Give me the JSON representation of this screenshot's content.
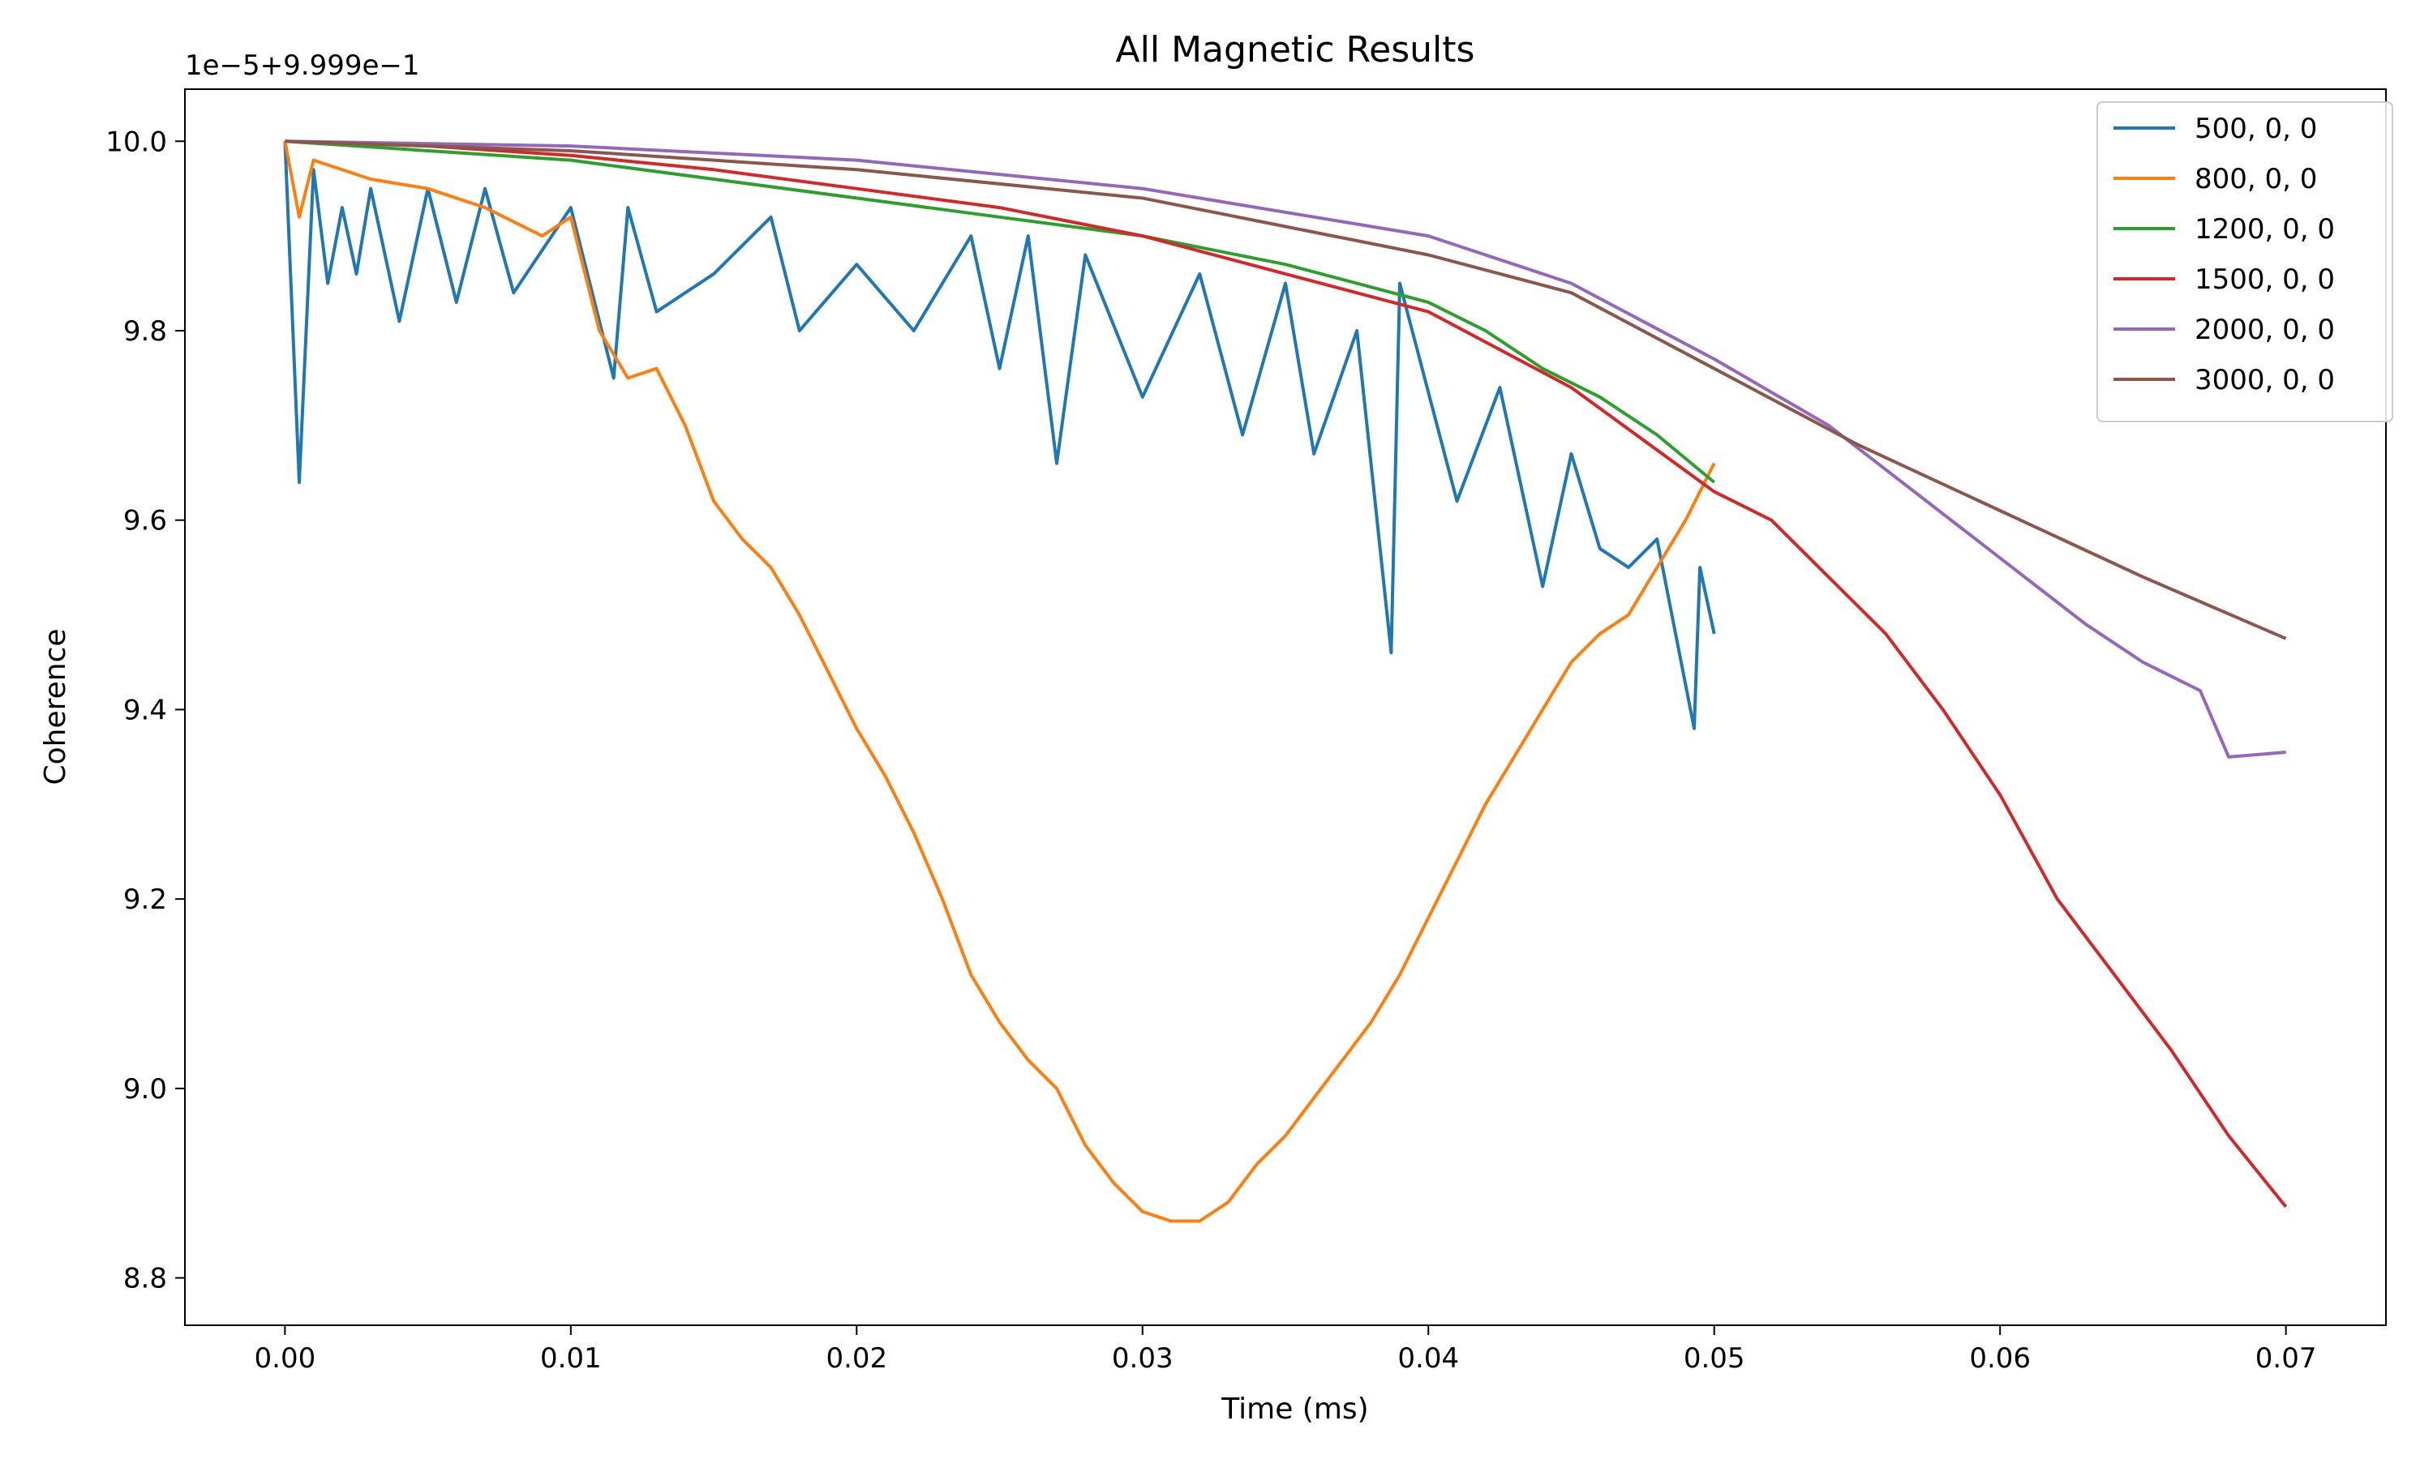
{
  "chart_data": {
    "type": "line",
    "title": "All Magnetic Results",
    "xlabel": "Time (ms)",
    "ylabel": "Coherence",
    "y_offset_text": "1e−5+9.999e−1",
    "xlim": [
      -0.0035,
      0.0735
    ],
    "ylim": [
      8.75,
      10.055
    ],
    "xticks": [
      0.0,
      0.01,
      0.02,
      0.03,
      0.04,
      0.05,
      0.06,
      0.07
    ],
    "xtick_labels": [
      "0.00",
      "0.01",
      "0.02",
      "0.03",
      "0.04",
      "0.05",
      "0.06",
      "0.07"
    ],
    "yticks": [
      8.8,
      9.0,
      9.2,
      9.4,
      9.6,
      9.8,
      10.0
    ],
    "ytick_labels": [
      "8.8",
      "9.0",
      "9.2",
      "9.4",
      "9.6",
      "9.8",
      "10.0"
    ],
    "grid": false,
    "legend_position": "top-right",
    "series": [
      {
        "name": "500, 0, 0",
        "color": "#1f77b4",
        "x": [
          0.0,
          0.0005,
          0.001,
          0.0015,
          0.002,
          0.0025,
          0.003,
          0.004,
          0.005,
          0.006,
          0.007,
          0.008,
          0.01,
          0.0115,
          0.012,
          0.013,
          0.015,
          0.017,
          0.018,
          0.02,
          0.022,
          0.024,
          0.025,
          0.026,
          0.027,
          0.028,
          0.03,
          0.032,
          0.0335,
          0.035,
          0.036,
          0.0375,
          0.0387,
          0.039,
          0.041,
          0.0425,
          0.044,
          0.045,
          0.046,
          0.047,
          0.048,
          0.0493,
          0.0495,
          0.05
        ],
        "y": [
          10.0,
          9.64,
          9.97,
          9.85,
          9.93,
          9.86,
          9.95,
          9.81,
          9.95,
          9.83,
          9.95,
          9.84,
          9.93,
          9.75,
          9.93,
          9.82,
          9.86,
          9.92,
          9.8,
          9.87,
          9.8,
          9.9,
          9.76,
          9.9,
          9.66,
          9.88,
          9.73,
          9.86,
          9.69,
          9.85,
          9.67,
          9.8,
          9.46,
          9.85,
          9.62,
          9.74,
          9.53,
          9.67,
          9.57,
          9.55,
          9.58,
          9.38,
          9.55,
          9.48
        ]
      },
      {
        "name": "800, 0, 0",
        "color": "#ff7f0e",
        "x": [
          0.0,
          0.0005,
          0.001,
          0.003,
          0.005,
          0.007,
          0.009,
          0.01,
          0.011,
          0.012,
          0.013,
          0.014,
          0.015,
          0.016,
          0.017,
          0.018,
          0.019,
          0.02,
          0.021,
          0.022,
          0.023,
          0.024,
          0.025,
          0.026,
          0.027,
          0.028,
          0.029,
          0.03,
          0.031,
          0.032,
          0.033,
          0.034,
          0.035,
          0.036,
          0.037,
          0.038,
          0.039,
          0.04,
          0.041,
          0.042,
          0.043,
          0.044,
          0.045,
          0.046,
          0.047,
          0.048,
          0.049,
          0.05
        ],
        "y": [
          10.0,
          9.92,
          9.98,
          9.96,
          9.95,
          9.93,
          9.9,
          9.92,
          9.8,
          9.75,
          9.76,
          9.7,
          9.62,
          9.58,
          9.55,
          9.5,
          9.44,
          9.38,
          9.33,
          9.27,
          9.2,
          9.12,
          9.07,
          9.03,
          9.0,
          8.94,
          8.9,
          8.87,
          8.86,
          8.86,
          8.88,
          8.92,
          8.95,
          8.99,
          9.03,
          9.07,
          9.12,
          9.18,
          9.24,
          9.3,
          9.35,
          9.4,
          9.45,
          9.48,
          9.5,
          9.55,
          9.6,
          9.66
        ]
      },
      {
        "name": "1200, 0, 0",
        "color": "#2ca02c",
        "x": [
          0.0,
          0.005,
          0.01,
          0.015,
          0.02,
          0.025,
          0.03,
          0.035,
          0.04,
          0.042,
          0.044,
          0.046,
          0.048,
          0.05
        ],
        "y": [
          10.0,
          9.99,
          9.98,
          9.96,
          9.94,
          9.92,
          9.9,
          9.87,
          9.83,
          9.8,
          9.76,
          9.73,
          9.69,
          9.64
        ]
      },
      {
        "name": "1500, 0, 0",
        "color": "#d62728",
        "x": [
          0.0,
          0.005,
          0.01,
          0.015,
          0.02,
          0.025,
          0.03,
          0.035,
          0.04,
          0.045,
          0.05,
          0.052,
          0.054,
          0.056,
          0.058,
          0.06,
          0.062,
          0.064,
          0.066,
          0.068,
          0.07
        ],
        "y": [
          10.0,
          9.995,
          9.985,
          9.97,
          9.95,
          9.93,
          9.9,
          9.86,
          9.82,
          9.74,
          9.63,
          9.6,
          9.54,
          9.48,
          9.4,
          9.31,
          9.2,
          9.12,
          9.04,
          8.95,
          8.875
        ]
      },
      {
        "name": "2000, 0, 0",
        "color": "#9467bd",
        "x": [
          0.0,
          0.01,
          0.02,
          0.03,
          0.04,
          0.045,
          0.05,
          0.054,
          0.057,
          0.06,
          0.063,
          0.065,
          0.067,
          0.068,
          0.07
        ],
        "y": [
          10.0,
          9.995,
          9.98,
          9.95,
          9.9,
          9.85,
          9.77,
          9.7,
          9.63,
          9.56,
          9.49,
          9.45,
          9.42,
          9.35,
          9.355
        ]
      },
      {
        "name": "3000, 0, 0",
        "color": "#8c564b",
        "x": [
          0.0,
          0.01,
          0.02,
          0.03,
          0.04,
          0.045,
          0.05,
          0.055,
          0.06,
          0.065,
          0.07
        ],
        "y": [
          10.0,
          9.99,
          9.97,
          9.94,
          9.88,
          9.84,
          9.76,
          9.68,
          9.61,
          9.54,
          9.475
        ]
      }
    ]
  }
}
